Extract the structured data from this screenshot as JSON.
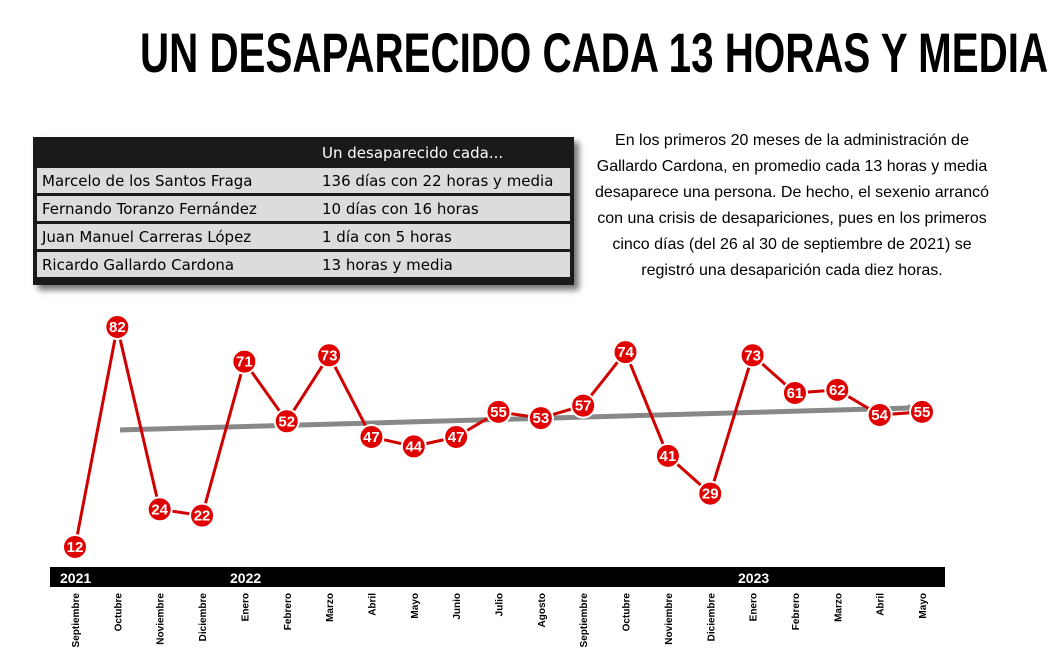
{
  "title": "UN DESAPARECIDO CADA 13 HORAS Y MEDIA",
  "table": {
    "header": [
      "",
      "Un desaparecido cada..."
    ],
    "rows": [
      [
        "Marcelo de los Santos Fraga",
        "136 días con 22 horas y media"
      ],
      [
        "Fernando Toranzo Fernández",
        "10 días con 16 horas"
      ],
      [
        "Juan Manuel Carreras López",
        "1 día con 5 horas"
      ],
      [
        "Ricardo Gallardo Cardona",
        "13 horas y media"
      ]
    ]
  },
  "note": "En los primeros 20 meses de la administración de Gallardo Cardona, en promedio cada 13 horas y media desaparece una persona. De hecho, el sexenio arrancó con una crisis de desapariciones, pues en los primeros cinco días (del 26 al 30 de septiembre de 2021) se registró una desaparición cada diez horas.",
  "chart_data": {
    "type": "line",
    "categories": [
      "Septiembre",
      "Octubre",
      "Noviembre",
      "Diciembre",
      "Enero",
      "Febrero",
      "Marzo",
      "Abril",
      "Mayo",
      "Junio",
      "Julio",
      "Agosto",
      "Septiembre",
      "Octubre",
      "Noviembre",
      "Diciembre",
      "Enero",
      "Febrero",
      "Marzo",
      "Abril",
      "Mayo"
    ],
    "years": [
      {
        "label": "2021",
        "start_index": 0
      },
      {
        "label": "2022",
        "start_index": 4
      },
      {
        "label": "2023",
        "start_index": 16
      }
    ],
    "series": [
      {
        "values": [
          12,
          82,
          24,
          22,
          71,
          52,
          73,
          47,
          44,
          47,
          55,
          53,
          57,
          74,
          41,
          29,
          73,
          61,
          62,
          54,
          55
        ]
      }
    ],
    "trend": {
      "start_index": 1,
      "start_value": 47,
      "end_index": 20,
      "end_value": 55
    },
    "ylim": [
      12,
      82
    ],
    "colors": {
      "line": "#d00000",
      "marker": "#e00000",
      "trend": "#888888",
      "year_bar": "#000000"
    }
  }
}
